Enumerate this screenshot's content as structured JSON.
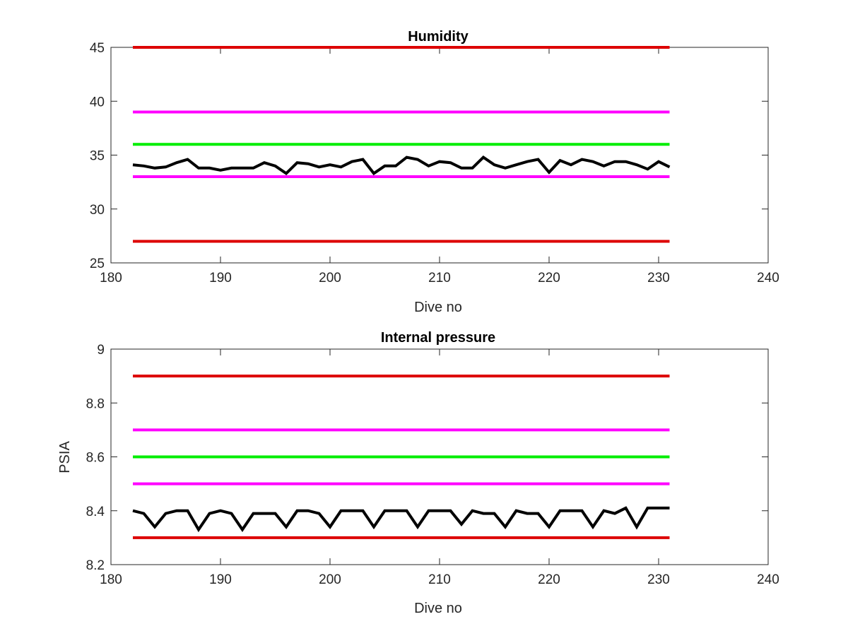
{
  "colors": {
    "red": "#dd0000",
    "magenta": "#ff00ff",
    "green": "#00ee00",
    "data": "#000000",
    "axis": "#262626",
    "background": "#ffffff"
  },
  "chart_data": [
    {
      "type": "line",
      "title": "Humidity",
      "xlabel": "Dive no",
      "ylabel": "",
      "xlim": [
        180,
        240
      ],
      "ylim": [
        25,
        45
      ],
      "xticks": [
        180,
        190,
        200,
        210,
        220,
        230,
        240
      ],
      "yticks": [
        25,
        30,
        35,
        40,
        45
      ],
      "yticklabels": [
        "25",
        "30",
        "35",
        "40",
        "45"
      ],
      "grid": false,
      "legend": "none",
      "thresholds": [
        {
          "value": 45,
          "x": [
            182,
            231
          ],
          "color": "red"
        },
        {
          "value": 39,
          "x": [
            182,
            231
          ],
          "color": "magenta"
        },
        {
          "value": 36,
          "x": [
            182,
            231
          ],
          "color": "green"
        },
        {
          "value": 33,
          "x": [
            182,
            231
          ],
          "color": "magenta"
        },
        {
          "value": 27,
          "x": [
            182,
            231
          ],
          "color": "red"
        }
      ],
      "series": [
        {
          "color": "data",
          "x": [
            182,
            183,
            184,
            185,
            186,
            187,
            188,
            189,
            190,
            191,
            192,
            193,
            194,
            195,
            196,
            197,
            198,
            199,
            200,
            201,
            202,
            203,
            204,
            205,
            206,
            207,
            208,
            209,
            210,
            211,
            212,
            213,
            214,
            215,
            216,
            217,
            218,
            219,
            220,
            221,
            222,
            223,
            224,
            225,
            226,
            227,
            228,
            229,
            230,
            231
          ],
          "y": [
            34.1,
            34.0,
            33.8,
            33.9,
            34.3,
            34.6,
            33.8,
            33.8,
            33.6,
            33.8,
            33.8,
            33.8,
            34.3,
            34.0,
            33.3,
            34.3,
            34.2,
            33.9,
            34.1,
            33.9,
            34.4,
            34.6,
            33.3,
            34.0,
            34.0,
            34.8,
            34.6,
            34.0,
            34.4,
            34.3,
            33.8,
            33.8,
            34.8,
            34.1,
            33.8,
            34.1,
            34.4,
            34.6,
            33.4,
            34.5,
            34.1,
            34.6,
            34.4,
            34.0,
            34.4,
            34.4,
            34.1,
            33.7,
            34.4,
            33.9
          ]
        }
      ]
    },
    {
      "type": "line",
      "title": "Internal pressure",
      "xlabel": "Dive no",
      "ylabel": "PSIA",
      "xlim": [
        180,
        240
      ],
      "ylim": [
        8.2,
        9.0
      ],
      "xticks": [
        180,
        190,
        200,
        210,
        220,
        230,
        240
      ],
      "yticks": [
        8.2,
        8.4,
        8.6,
        8.8,
        9.0
      ],
      "yticklabels": [
        "8.2",
        "8.4",
        "8.6",
        "8.8",
        "9"
      ],
      "grid": false,
      "legend": "none",
      "thresholds": [
        {
          "value": 8.9,
          "x": [
            182,
            231
          ],
          "color": "red"
        },
        {
          "value": 8.7,
          "x": [
            182,
            231
          ],
          "color": "magenta"
        },
        {
          "value": 8.6,
          "x": [
            182,
            231
          ],
          "color": "green"
        },
        {
          "value": 8.5,
          "x": [
            182,
            231
          ],
          "color": "magenta"
        },
        {
          "value": 8.3,
          "x": [
            182,
            231
          ],
          "color": "red"
        }
      ],
      "series": [
        {
          "color": "data",
          "x": [
            182,
            183,
            184,
            185,
            186,
            187,
            188,
            189,
            190,
            191,
            192,
            193,
            194,
            195,
            196,
            197,
            198,
            199,
            200,
            201,
            202,
            203,
            204,
            205,
            206,
            207,
            208,
            209,
            210,
            211,
            212,
            213,
            214,
            215,
            216,
            217,
            218,
            219,
            220,
            221,
            222,
            223,
            224,
            225,
            226,
            227,
            228,
            229,
            230,
            231
          ],
          "y": [
            8.4,
            8.39,
            8.34,
            8.39,
            8.4,
            8.4,
            8.33,
            8.39,
            8.4,
            8.39,
            8.33,
            8.39,
            8.39,
            8.39,
            8.34,
            8.4,
            8.4,
            8.39,
            8.34,
            8.4,
            8.4,
            8.4,
            8.34,
            8.4,
            8.4,
            8.4,
            8.34,
            8.4,
            8.4,
            8.4,
            8.35,
            8.4,
            8.39,
            8.39,
            8.34,
            8.4,
            8.39,
            8.39,
            8.34,
            8.4,
            8.4,
            8.4,
            8.34,
            8.4,
            8.39,
            8.41,
            8.34,
            8.41,
            8.41,
            8.41
          ]
        }
      ]
    }
  ]
}
